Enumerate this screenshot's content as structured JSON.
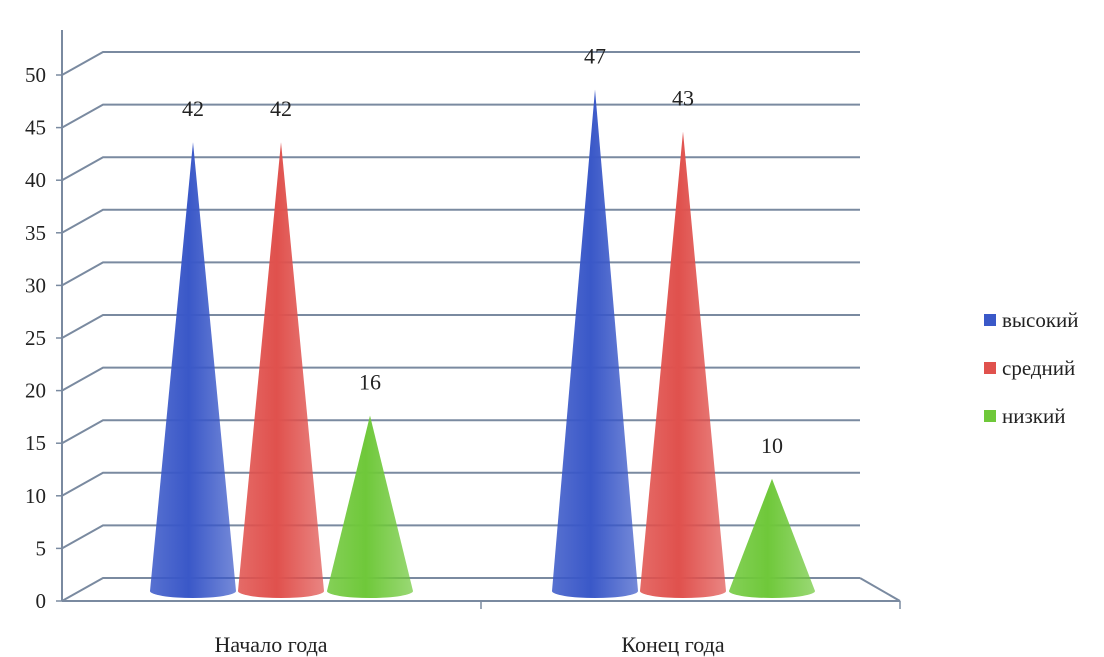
{
  "chart_data": {
    "type": "bar",
    "categories": [
      "Начало года",
      "Конец года"
    ],
    "series": [
      {
        "name": "высокий",
        "values": [
          42,
          47
        ],
        "color": "#3a58c8"
      },
      {
        "name": "средний",
        "values": [
          42,
          43
        ],
        "color": "#e0514d"
      },
      {
        "name": "низкий",
        "values": [
          16,
          10
        ],
        "color": "#6fc83a"
      }
    ],
    "y_ticks": [
      "0",
      "5",
      "10",
      "15",
      "20",
      "25",
      "30",
      "35",
      "40",
      "45",
      "50"
    ],
    "ylim": [
      0,
      50
    ],
    "grid": true,
    "legend_position": "right",
    "bar_shape": "cone"
  }
}
